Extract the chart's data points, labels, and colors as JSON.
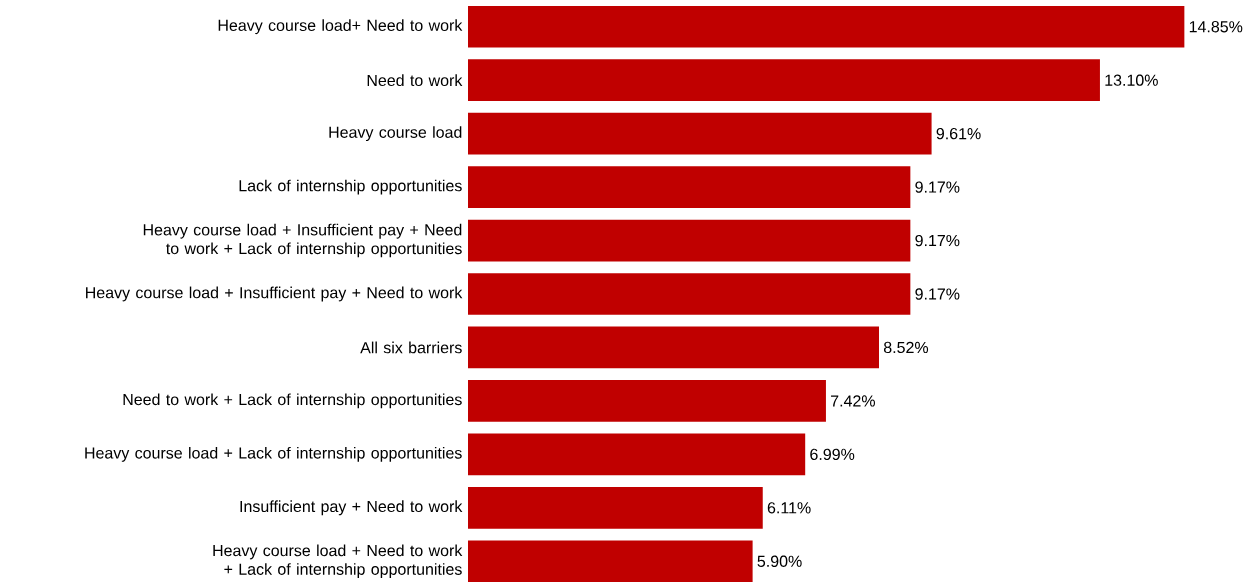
{
  "chart_data": {
    "type": "bar",
    "orientation": "horizontal",
    "categories": [
      "Heavy course load+ Need to work",
      "Need to work",
      "Heavy course load",
      "Lack of internship opportunities",
      "Heavy course load + Insufficient pay + Need to work + Lack of internship opportunities",
      "Heavy course load + Insufficient pay + Need to work",
      "All six barriers",
      "Need to work + Lack of internship opportunities",
      "Heavy course load + Lack of internship opportunities",
      "Insufficient pay + Need to work",
      "Heavy course load + Need to work + Lack of internship opportunities"
    ],
    "values": [
      14.85,
      13.1,
      9.61,
      9.17,
      9.17,
      9.17,
      8.52,
      7.42,
      6.99,
      6.11,
      5.9
    ],
    "value_labels": [
      "14.85%",
      "13.10%",
      "9.61%",
      "9.17%",
      "9.17%",
      "9.17%",
      "8.52%",
      "7.42%",
      "6.99%",
      "6.11%",
      "5.90%"
    ],
    "color": "#c00000"
  }
}
